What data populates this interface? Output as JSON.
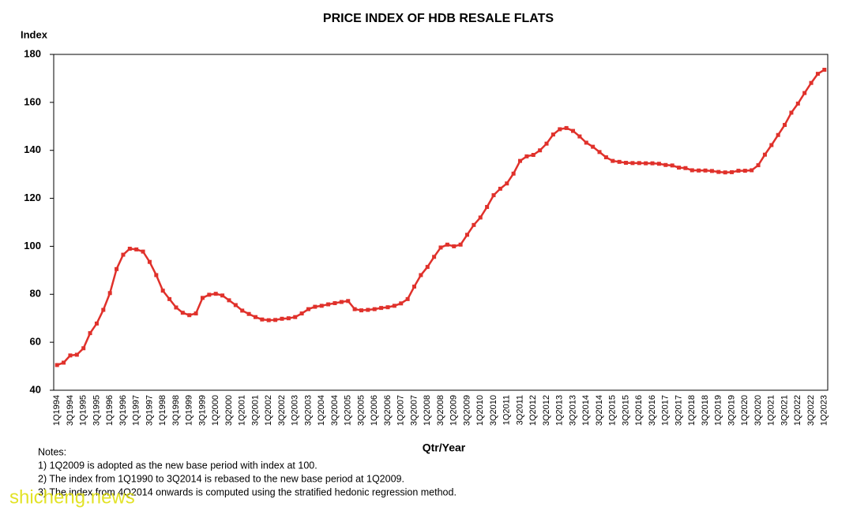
{
  "chart_data": {
    "type": "line",
    "title": "PRICE INDEX OF HDB RESALE FLATS",
    "y_label": "Index",
    "x_label": "Qtr/Year",
    "notes": [
      "Notes:",
      "1) 1Q2009 is adopted as the new base period with index at 100.",
      "2) The index from 1Q1990 to 3Q2014 is rebased to the new base period at 1Q2009.",
      "3) The index from 4Q2014 onwards is computed using the stratified hedonic regression method."
    ],
    "watermark": "shicheng.news",
    "categories": [
      "1Q1994",
      null,
      "3Q1994",
      null,
      "1Q1995",
      null,
      "3Q1995",
      null,
      "1Q1996",
      null,
      "3Q1996",
      null,
      "1Q1997",
      null,
      "3Q1997",
      null,
      "1Q1998",
      null,
      "3Q1998",
      null,
      "1Q1999",
      null,
      "3Q1999",
      null,
      "1Q2000",
      null,
      "3Q2000",
      null,
      "1Q2001",
      null,
      "3Q2001",
      null,
      "1Q2002",
      null,
      "3Q2002",
      null,
      "1Q2003",
      null,
      "3Q2003",
      null,
      "1Q2004",
      null,
      "3Q2004",
      null,
      "1Q2005",
      null,
      "3Q2005",
      null,
      "1Q2006",
      null,
      "3Q2006",
      null,
      "1Q2007",
      null,
      "3Q2007",
      null,
      "1Q2008",
      null,
      "3Q2008",
      null,
      "1Q2009",
      null,
      "3Q2009",
      null,
      "1Q2010",
      null,
      "3Q2010",
      null,
      "1Q2011",
      null,
      "3Q2011",
      null,
      "1Q2012",
      null,
      "3Q2012",
      null,
      "1Q2013",
      null,
      "3Q2013",
      null,
      "1Q2014",
      null,
      "3Q2014",
      null,
      "1Q2015",
      null,
      "3Q2015",
      null,
      "1Q2016",
      null,
      "3Q2016",
      null,
      "1Q2017",
      null,
      "3Q2017",
      null,
      "1Q2018",
      null,
      "3Q2018",
      null,
      "1Q2019",
      null,
      "3Q2019",
      null,
      "1Q2020",
      null,
      "3Q2020",
      null,
      "1Q2021",
      null,
      "3Q2021",
      null,
      "1Q2022",
      null,
      "3Q2022",
      null,
      "1Q2023"
    ],
    "values": [
      50.5,
      51.5,
      54.5,
      54.8,
      57.5,
      63.8,
      67.8,
      73.5,
      80.5,
      90.5,
      96.5,
      99,
      98.7,
      97.8,
      93.5,
      88,
      81.5,
      78,
      74.5,
      72.3,
      71.3,
      72,
      78.5,
      79.8,
      80.2,
      79.5,
      77.5,
      75.5,
      73.2,
      71.8,
      70.5,
      69.5,
      69.2,
      69.3,
      69.8,
      70,
      70.5,
      72,
      73.8,
      74.8,
      75.2,
      75.8,
      76.3,
      76.8,
      77.2,
      73.8,
      73.3,
      73.5,
      73.8,
      74.3,
      74.6,
      75.2,
      76.2,
      78,
      83.2,
      88,
      91.4,
      95.6,
      99.5,
      100.7,
      100,
      100.7,
      104.8,
      108.9,
      112,
      116.4,
      121.3,
      124,
      126.2,
      130.3,
      135.6,
      137.5,
      138.1,
      140,
      142.8,
      146.6,
      148.8,
      149.3,
      148.1,
      145.8,
      143.2,
      141.5,
      139.3,
      137.1,
      135.6,
      135.2,
      134.8,
      134.7,
      134.7,
      134.6,
      134.6,
      134.4,
      133.9,
      133.7,
      132.8,
      132.6,
      131.7,
      131.6,
      131.6,
      131.4,
      131,
      130.8,
      130.9,
      131.5,
      131.5,
      131.7,
      133.8,
      138.2,
      142.2,
      146.4,
      150.6,
      155.7,
      159.5,
      163.9,
      168.1,
      171.9,
      173.6
    ],
    "color": "#e0312b",
    "ylim": [
      40,
      180
    ],
    "yticks": [
      40,
      60,
      80,
      100,
      120,
      140,
      160,
      180
    ],
    "grid": false
  }
}
